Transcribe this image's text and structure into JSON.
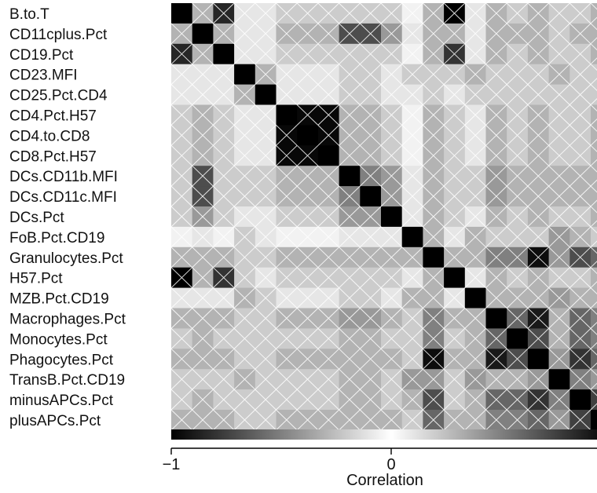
{
  "chart_data": {
    "type": "heatmap",
    "title": "",
    "variables": [
      "B.to.T",
      "CD11cplus.Pct",
      "CD19.Pct",
      "CD23.MFI",
      "CD25.Pct.CD4",
      "CD4.Pct.H57",
      "CD4.to.CD8",
      "CD8.Pct.H57",
      "DCs.CD11b.MFI",
      "DCs.CD11c.MFI",
      "DCs.Pct",
      "FoB.Pct.CD19",
      "Granulocytes.Pct",
      "H57.Pct",
      "MZB.Pct.CD19",
      "Macrophages.Pct",
      "Monocytes.Pct",
      "Phagocytes.Pct",
      "TransB.Pct.CD19",
      "minusAPCs.Pct",
      "plusAPCs.Pct"
    ],
    "matrix": [
      [
        1,
        0.3,
        0.85,
        0.1,
        0.1,
        0.2,
        0.2,
        0.2,
        0.2,
        0.2,
        0.2,
        0.05,
        0.3,
        1,
        0.1,
        0.3,
        0.2,
        0.3,
        0.2,
        0.2,
        0.3
      ],
      [
        0.3,
        1,
        0.3,
        0.1,
        0.1,
        0.3,
        0.3,
        0.3,
        0.7,
        0.7,
        0.4,
        0.1,
        0.3,
        0.3,
        0.1,
        0.3,
        0.3,
        0.3,
        0.2,
        0.3,
        0.3
      ],
      [
        0.85,
        0.3,
        1,
        0.1,
        0.1,
        0.2,
        0.2,
        0.2,
        0.2,
        0.2,
        0.2,
        0.05,
        0.3,
        0.8,
        0.1,
        0.3,
        0.2,
        0.3,
        0.2,
        0.2,
        0.3
      ],
      [
        0.1,
        0.1,
        0.1,
        1,
        0.3,
        0.1,
        0.1,
        0.1,
        0.2,
        0.2,
        0.1,
        0.2,
        0.2,
        0.2,
        0.3,
        0.2,
        0.2,
        0.2,
        0.3,
        0.2,
        0.2
      ],
      [
        0.1,
        0.1,
        0.1,
        0.3,
        1,
        0.1,
        0.1,
        0.1,
        0.2,
        0.2,
        0.1,
        0.1,
        0.2,
        0.1,
        0.2,
        0.2,
        0.2,
        0.2,
        0.2,
        0.2,
        0.2
      ],
      [
        0.2,
        0.3,
        0.2,
        0.1,
        0.1,
        1,
        0.97,
        0.97,
        0.3,
        0.3,
        0.2,
        0.05,
        0.3,
        0.2,
        0.1,
        0.3,
        0.2,
        0.3,
        0.2,
        0.2,
        0.3
      ],
      [
        0.2,
        0.3,
        0.2,
        0.1,
        0.1,
        0.97,
        1,
        0.97,
        0.3,
        0.3,
        0.2,
        0.05,
        0.3,
        0.2,
        0.1,
        0.3,
        0.2,
        0.3,
        0.2,
        0.2,
        0.3
      ],
      [
        0.2,
        0.3,
        0.2,
        0.1,
        0.1,
        0.97,
        0.97,
        1,
        0.3,
        0.3,
        0.2,
        0.05,
        0.3,
        0.2,
        0.1,
        0.3,
        0.2,
        0.3,
        0.2,
        0.2,
        0.3
      ],
      [
        0.2,
        0.7,
        0.2,
        0.2,
        0.2,
        0.3,
        0.3,
        0.3,
        1,
        0.5,
        0.4,
        0.1,
        0.3,
        0.2,
        0.2,
        0.4,
        0.3,
        0.3,
        0.3,
        0.3,
        0.3
      ],
      [
        0.2,
        0.7,
        0.2,
        0.2,
        0.2,
        0.3,
        0.3,
        0.3,
        0.5,
        1,
        0.4,
        0.1,
        0.3,
        0.2,
        0.2,
        0.4,
        0.3,
        0.3,
        0.3,
        0.3,
        0.3
      ],
      [
        0.2,
        0.4,
        0.2,
        0.1,
        0.1,
        0.2,
        0.2,
        0.2,
        0.4,
        0.4,
        1,
        0.1,
        0.3,
        0.2,
        0.1,
        0.3,
        0.2,
        0.3,
        0.2,
        0.2,
        0.3
      ],
      [
        0.05,
        0.1,
        0.05,
        0.2,
        0.1,
        0.05,
        0.05,
        0.05,
        0.1,
        0.1,
        0.1,
        1,
        0.3,
        0.1,
        0.3,
        0.2,
        0.2,
        0.2,
        0.4,
        0.3,
        0.2
      ],
      [
        0.3,
        0.3,
        0.3,
        0.2,
        0.2,
        0.3,
        0.3,
        0.3,
        0.3,
        0.3,
        0.3,
        0.3,
        1,
        0.3,
        0.3,
        0.5,
        0.5,
        0.95,
        0.4,
        0.7,
        0.6
      ],
      [
        1,
        0.3,
        0.8,
        0.2,
        0.1,
        0.2,
        0.2,
        0.2,
        0.2,
        0.2,
        0.2,
        0.1,
        0.3,
        1,
        0.1,
        0.3,
        0.2,
        0.3,
        0.2,
        0.2,
        0.3
      ],
      [
        0.1,
        0.1,
        0.1,
        0.3,
        0.2,
        0.1,
        0.1,
        0.1,
        0.2,
        0.2,
        0.1,
        0.3,
        0.3,
        0.1,
        1,
        0.3,
        0.3,
        0.3,
        0.4,
        0.3,
        0.3
      ],
      [
        0.3,
        0.3,
        0.3,
        0.2,
        0.2,
        0.3,
        0.3,
        0.3,
        0.4,
        0.4,
        0.3,
        0.2,
        0.5,
        0.3,
        0.3,
        1,
        0.6,
        0.9,
        0.3,
        0.6,
        0.5
      ],
      [
        0.2,
        0.3,
        0.2,
        0.2,
        0.2,
        0.2,
        0.2,
        0.2,
        0.3,
        0.3,
        0.2,
        0.2,
        0.5,
        0.2,
        0.3,
        0.6,
        1,
        0.7,
        0.3,
        0.6,
        0.5
      ],
      [
        0.3,
        0.3,
        0.3,
        0.2,
        0.2,
        0.3,
        0.3,
        0.3,
        0.3,
        0.3,
        0.3,
        0.2,
        0.95,
        0.3,
        0.3,
        0.9,
        0.7,
        1,
        0.4,
        0.8,
        0.6
      ],
      [
        0.2,
        0.2,
        0.2,
        0.3,
        0.2,
        0.2,
        0.2,
        0.2,
        0.3,
        0.3,
        0.2,
        0.4,
        0.4,
        0.2,
        0.4,
        0.3,
        0.3,
        0.4,
        1,
        0.5,
        0.4
      ],
      [
        0.2,
        0.3,
        0.2,
        0.2,
        0.2,
        0.2,
        0.2,
        0.2,
        0.3,
        0.3,
        0.2,
        0.3,
        0.7,
        0.2,
        0.3,
        0.6,
        0.6,
        0.8,
        0.5,
        1,
        0.75
      ],
      [
        0.3,
        0.3,
        0.3,
        0.2,
        0.2,
        0.3,
        0.3,
        0.3,
        0.3,
        0.3,
        0.3,
        0.2,
        0.6,
        0.3,
        0.3,
        0.5,
        0.5,
        0.6,
        0.4,
        0.75,
        1
      ]
    ],
    "colorbar": {
      "range": [
        -1,
        1
      ],
      "tick_values": [
        -1,
        0
      ],
      "tick_labels": [
        "−1",
        "0"
      ],
      "title": "Correlation"
    },
    "colors": {
      "strong": "#000000",
      "zero": "#ffffff",
      "lines": "#ffffff"
    }
  }
}
